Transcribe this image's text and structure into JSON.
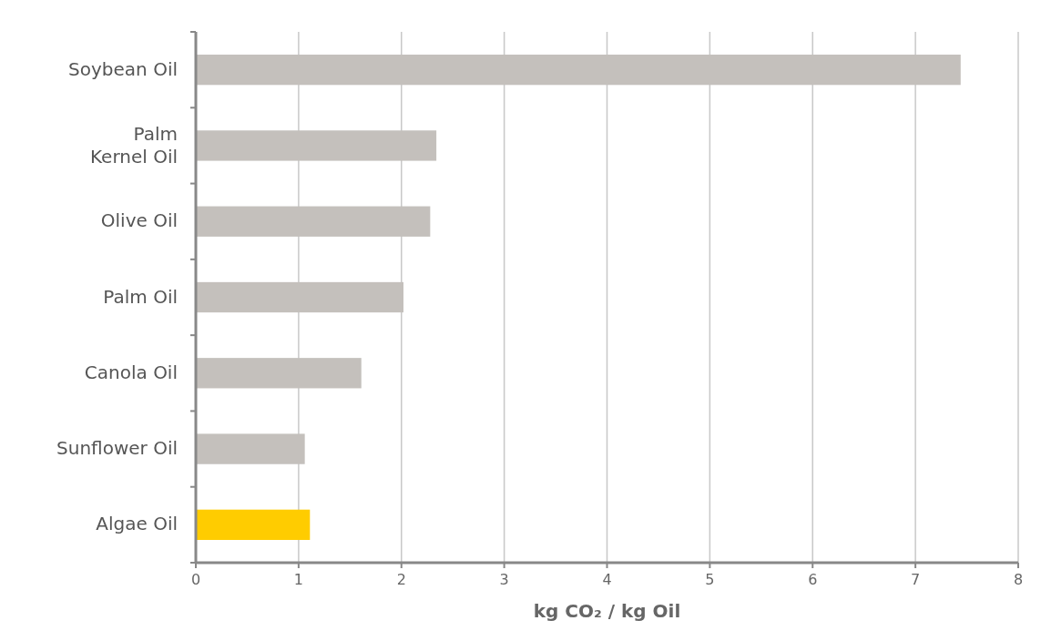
{
  "chart_data": {
    "type": "bar",
    "orientation": "horizontal",
    "categories": [
      "Soybean Oil",
      "Palm Kernel Oil",
      "Olive Oil",
      "Palm Oil",
      "Canola Oil",
      "Sunflower Oil",
      "Algae Oil"
    ],
    "values": [
      7.44,
      2.34,
      2.28,
      2.02,
      1.61,
      1.06,
      1.11
    ],
    "colors": [
      "#c4c0bc",
      "#c4c0bc",
      "#c4c0bc",
      "#c4c0bc",
      "#c4c0bc",
      "#c4c0bc",
      "#ffcc00"
    ],
    "xlim": [
      0,
      8
    ],
    "xticks": [
      0,
      1,
      2,
      3,
      4,
      5,
      6,
      7,
      8
    ],
    "xlabel": "kg CO₂ / kg Oil",
    "grid": "x"
  }
}
